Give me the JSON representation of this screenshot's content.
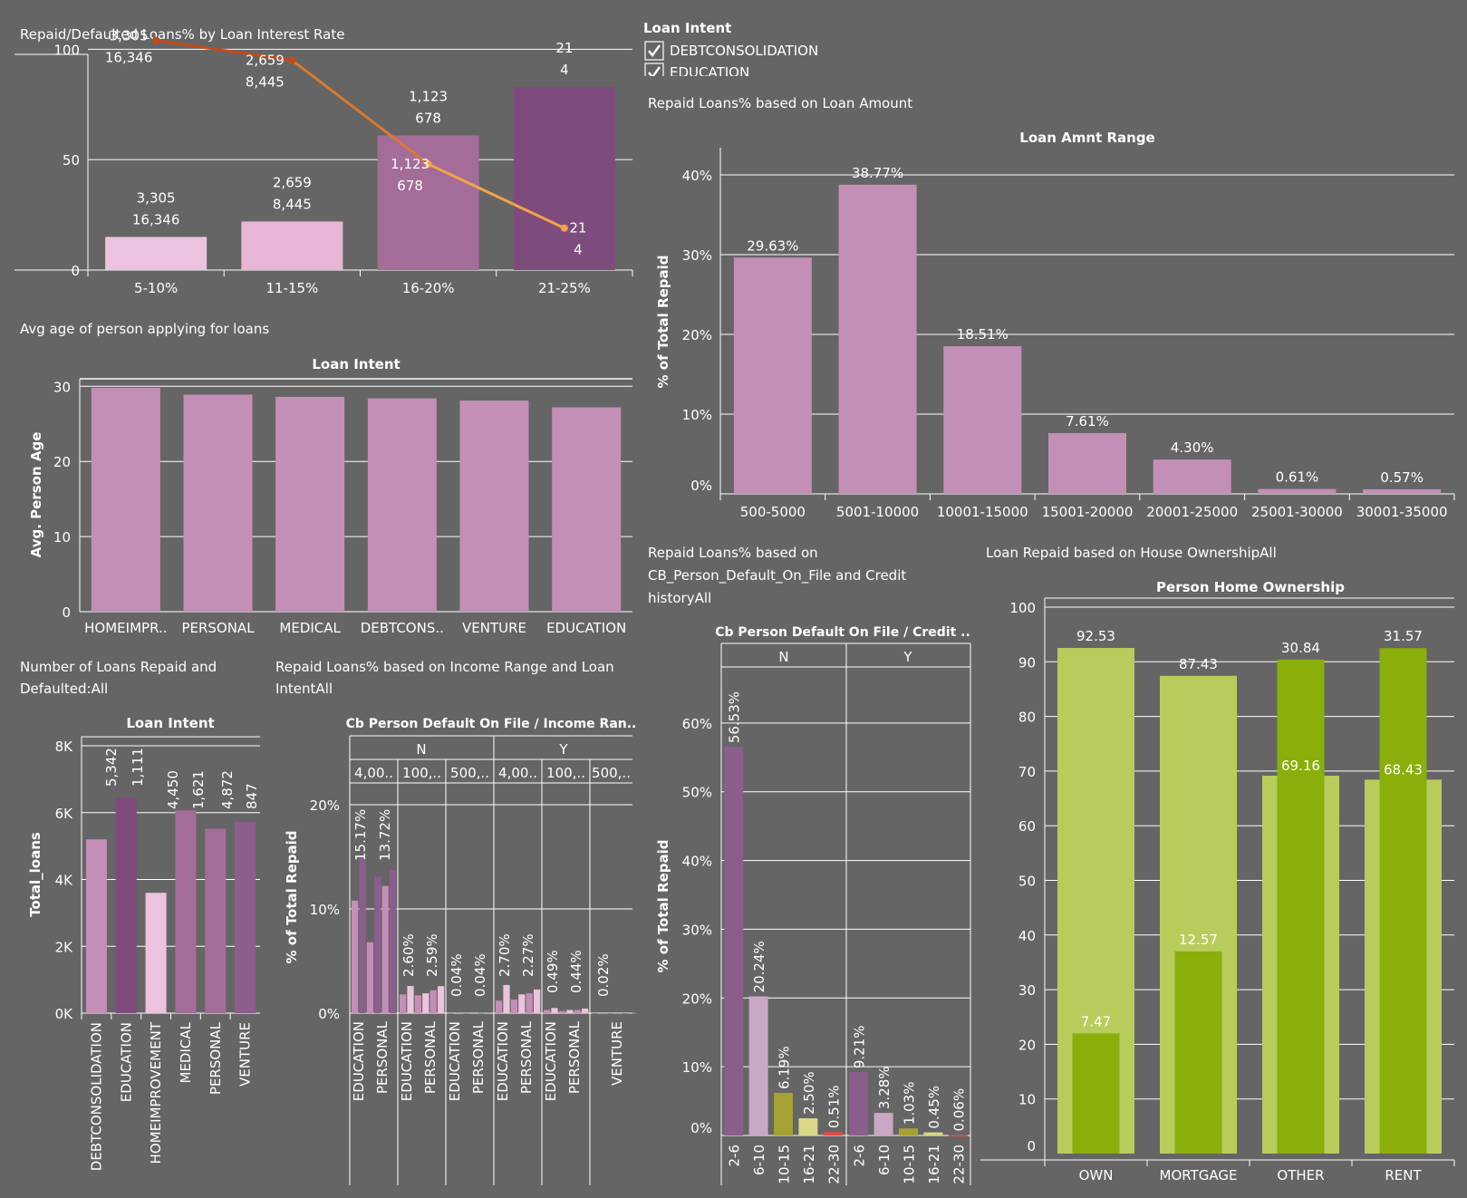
{
  "colors": {
    "bg": "#656565",
    "grid": "#ffffff",
    "pink_light": "#ecc3de",
    "pink_mid": "#e7b6d5",
    "mauve": "#a46c99",
    "plum": "#7e4c7c",
    "orchid": "#c48fb7",
    "purple2": "#8c5e8e",
    "purple3": "#7c4c7a",
    "lime_light": "#b8cc5c",
    "lime_dark": "#8aae0a",
    "line_red": "#c34a18",
    "line_orange": "#f2a447",
    "olive": "#a4a232",
    "pale_yellow": "#d8d888",
    "red": "#e04a46"
  },
  "filter": {
    "title": "Loan Intent",
    "items": [
      "DEBTCONSOLIDATION",
      "EDUCATION"
    ]
  },
  "chart_data": [
    {
      "id": "interest",
      "type": "bar",
      "title": "Repaid/Defaulted Loans% by Loan Interest Rate",
      "categories": [
        "5-10%",
        "11-15%",
        "16-20%",
        "21-25%"
      ],
      "bar_values": [
        15,
        22,
        61,
        83
      ],
      "line_values": [
        104,
        95,
        48,
        19
      ],
      "bar_labels": [
        [
          "3,305",
          "16,346"
        ],
        [
          "2,659",
          "8,445"
        ],
        [
          "1,123",
          "678"
        ],
        [
          "21",
          "4"
        ]
      ],
      "line_labels": [
        [
          "3,305",
          "16,346"
        ],
        [
          "2,659",
          "8,445"
        ],
        [
          "1,123",
          "678"
        ],
        [
          "21",
          "4"
        ]
      ],
      "yticks": [
        0,
        50,
        100
      ],
      "ylim": [
        0,
        110
      ]
    },
    {
      "id": "age",
      "type": "bar",
      "title": "Avg age of person applying for loans",
      "header": "Loan Intent",
      "ylabel": "Avg. Person Age",
      "categories": [
        "HOMEIMPR..",
        "PERSONAL",
        "MEDICAL",
        "DEBTCONS..",
        "VENTURE",
        "EDUCATION"
      ],
      "values": [
        29.8,
        28.9,
        28.6,
        28.4,
        28.1,
        27.2
      ],
      "yticks": [
        0,
        10,
        20,
        30
      ],
      "ylim": [
        0,
        31
      ]
    },
    {
      "id": "amount",
      "type": "bar",
      "title": "Repaid Loans% based on Loan Amount",
      "header": "Loan Amnt Range",
      "ylabel": "% of Total Repaid",
      "categories": [
        "500-5000",
        "5001-10000",
        "10001-15000",
        "15001-20000",
        "20001-25000",
        "25001-30000",
        "30001-35000"
      ],
      "values": [
        29.63,
        38.77,
        18.51,
        7.61,
        4.3,
        0.61,
        0.57
      ],
      "labels": [
        "29.63%",
        "38.77%",
        "18.51%",
        "7.61%",
        "4.30%",
        "0.61%",
        "0.57%"
      ],
      "yticks": [
        "0%",
        "10%",
        "20%",
        "30%",
        "40%"
      ],
      "ylim": [
        0,
        40
      ]
    },
    {
      "id": "numloans",
      "type": "bar",
      "title": "Number of Loans Repaid and Defaulted:All",
      "header": "Loan Intent",
      "ylabel": "Total_loans",
      "categories": [
        "DEBTCONSOLIDATION",
        "EDUCATION",
        "HOMEIMPROVEMENT",
        "MEDICAL",
        "PERSONAL",
        "VENTURE"
      ],
      "values": [
        5200,
        6453,
        3600,
        6071,
        5521,
        5719
      ],
      "top_labels": [
        "5,342",
        "1,111",
        "4,450",
        "1,621",
        "4,872",
        "847"
      ],
      "yticks": [
        "0K",
        "2K",
        "4K",
        "6K",
        "8K"
      ],
      "ylim": [
        0,
        8000
      ]
    },
    {
      "id": "income",
      "type": "bar",
      "title": "Repaid Loans% based on Income Range and Loan IntentAll",
      "header": "Cb Person Default On File  /  Income Ran..",
      "ylabel": "% of Total Repaid",
      "groups": [
        "N",
        "Y"
      ],
      "subgroups": [
        "4,00..",
        "100,..",
        "500,.."
      ],
      "categories": [
        "EDUCATION",
        "PERSONAL",
        "EDUCATION",
        "PERSONAL",
        "EDUCATION",
        "PERSONAL",
        "EDUCATION",
        "PERSONAL",
        "EDUCATION",
        "PERSONAL",
        "VENTURE"
      ],
      "cells": [
        [
          10.8,
          15.17,
          6.8,
          13.1,
          12.2,
          13.72
        ],
        [
          1.8,
          2.6,
          1.7,
          1.9,
          2.2,
          2.59
        ],
        [
          0.01,
          0.04,
          0.01,
          0.02,
          0.02,
          0.04
        ],
        [
          1.2,
          2.7,
          1.3,
          1.8,
          1.9,
          2.27
        ],
        [
          0.3,
          0.49,
          0.2,
          0.3,
          0.3,
          0.44
        ],
        [
          0.0,
          0.0,
          0.0,
          0.0,
          0.0,
          0.02
        ]
      ],
      "labels": [
        "15.17%",
        "13.72%",
        "2.60%",
        "2.59%",
        "0.04%",
        "0.04%",
        "2.70%",
        "2.27%",
        "0.49%",
        "0.44%",
        "0.02%"
      ],
      "yticks": [
        "0%",
        "10%",
        "20%"
      ],
      "ylim": [
        0,
        20
      ]
    },
    {
      "id": "credit",
      "type": "bar",
      "title": "Repaid Loans% based on CB_Person_Default_On_File and Credit historyAll",
      "title_lines": [
        "Repaid Loans% based on",
        "CB_Person_Default_On_File and Credit",
        "historyAll"
      ],
      "header": "Cb Person Default On File  /  Credit ..",
      "ylabel": "% of Total Repaid",
      "groups": [
        "N",
        "Y"
      ],
      "categories": [
        "2-6",
        "6-10",
        "10-15",
        "16-21",
        "22-30"
      ],
      "series": [
        {
          "group": "N",
          "values": [
            56.53,
            20.24,
            6.19,
            2.5,
            0.51
          ],
          "labels": [
            "56.53%",
            "20.24%",
            "6.19%",
            "2.50%",
            "0.51%"
          ]
        },
        {
          "group": "Y",
          "values": [
            9.21,
            3.28,
            1.03,
            0.45,
            0.06
          ],
          "labels": [
            "9.21%",
            "3.28%",
            "1.03%",
            "0.45%",
            "0.06%"
          ]
        }
      ],
      "yticks": [
        "0%",
        "10%",
        "20%",
        "30%",
        "40%",
        "50%",
        "60%"
      ],
      "ylim": [
        0,
        70
      ]
    },
    {
      "id": "home",
      "type": "bar",
      "title": "Loan Repaid  based on House OwnershipAll",
      "header": "Person Home Ownership",
      "categories": [
        "OWN",
        "MORTGAGE",
        "OTHER",
        "RENT"
      ],
      "wide_values": [
        92.53,
        87.43,
        69.16,
        68.43
      ],
      "narrow_values": [
        22,
        37,
        90.4,
        92.5
      ],
      "wide_labels": [
        "92.53",
        "87.43",
        "69.16",
        "68.43"
      ],
      "narrow_labels": [
        "7.47",
        "12.57",
        "30.84",
        "31.57"
      ],
      "yticks": [
        0,
        10,
        20,
        30,
        40,
        50,
        60,
        70,
        80,
        90,
        100
      ],
      "ylim": [
        0,
        100
      ]
    }
  ]
}
